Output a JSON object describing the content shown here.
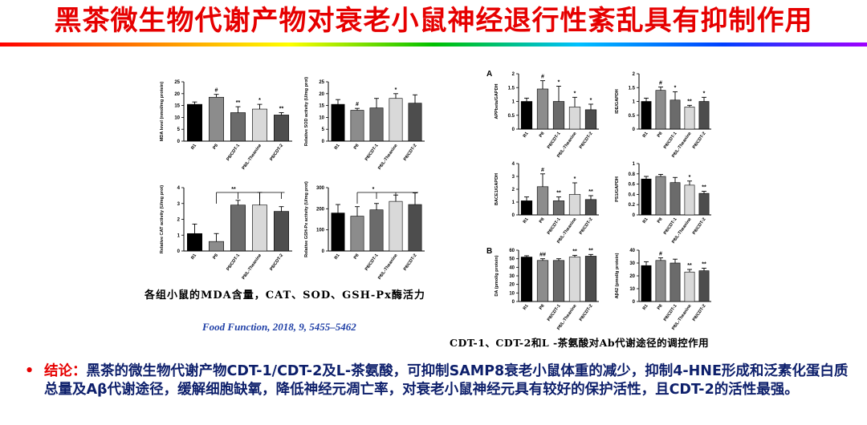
{
  "title": "黑茶微生物代谢产物对衰老小鼠神经退行性紊乱具有抑制作用",
  "colors": {
    "title": "#e60000",
    "conclusion_text": "#0d1f6b",
    "citation": "#1f3fa6",
    "bars": [
      "#000000",
      "#8c8c8c",
      "#6b6b6b",
      "#d9d9d9",
      "#4d4d4d"
    ]
  },
  "left_caption": "各组小鼠的MDA含量，CAT、SOD、GSH-Px酶活力",
  "citation": "Food Function, 2018, 9, 5455–5462",
  "right_caption": "CDT-1、CDT-2和L -茶氨酸对Ab代谢途径的调控作用",
  "conclusion": {
    "bullet": "•",
    "label": "结论：",
    "text": "黑茶的微生物代谢产物CDT-1/CDT-2及L-茶氨酸，可抑制SAMP8衰老小鼠体重的减少，抑制4-HNE形成和泛素化蛋白质总量及Aβ代谢途径，缓解细胞缺氧，降低神经元凋亡率，对衰老小鼠神经元具有较好的保护活性，且CDT-2的活性最强。"
  },
  "panel_letters": [
    "A",
    "B"
  ],
  "chart_data": [
    {
      "id": "mda",
      "type": "bar",
      "ylabel": "MDA level (nmol/mg protein)",
      "ylim": [
        0,
        25
      ],
      "yticks": [
        0,
        5,
        10,
        15,
        20,
        25
      ],
      "categories": [
        "R1",
        "P8",
        "P8/CDT-1",
        "P8/L-Theanine",
        "P8/CDT-2"
      ],
      "values": [
        15.5,
        18.5,
        12,
        13.5,
        11
      ],
      "errors": [
        1,
        1.2,
        2.5,
        2,
        1
      ],
      "sig": [
        "",
        "#",
        "**",
        "*",
        "**"
      ]
    },
    {
      "id": "sod",
      "type": "bar",
      "ylabel": "Relative SOD activity (U/mg prot)",
      "ylim": [
        0,
        25
      ],
      "yticks": [
        0,
        5,
        10,
        15,
        20,
        25
      ],
      "categories": [
        "R1",
        "P8",
        "P8/CDT-1",
        "P8/L-Theanine",
        "P8/CDT-2"
      ],
      "values": [
        15.5,
        13,
        14,
        18,
        16
      ],
      "errors": [
        2,
        0.8,
        4,
        2,
        3.5
      ],
      "sig": [
        "",
        "#",
        "",
        "*",
        ""
      ]
    },
    {
      "id": "cat",
      "type": "bar",
      "ylabel": "Relative CAT activity (U/mg prot)",
      "ylim": [
        0,
        4
      ],
      "yticks": [
        0,
        1,
        2,
        3,
        4
      ],
      "categories": [
        "R1",
        "P8",
        "P8/CDT-1",
        "P8/L-Theanine",
        "P8/CDT-2"
      ],
      "values": [
        1.1,
        0.6,
        2.9,
        2.9,
        2.5
      ],
      "errors": [
        0.6,
        0.5,
        0.3,
        0.8,
        0.3
      ],
      "sig": [
        "",
        "",
        "",
        "",
        ""
      ],
      "bracket": "**"
    },
    {
      "id": "gsh",
      "type": "bar",
      "ylabel": "Relative GSH-Px activity (U/mg prot)",
      "ylim": [
        0,
        300
      ],
      "yticks": [
        0,
        100,
        200,
        300
      ],
      "categories": [
        "R1",
        "P8",
        "P8/CDT-1",
        "P8/L-Theanine",
        "P8/CDT-2"
      ],
      "values": [
        180,
        165,
        195,
        235,
        220
      ],
      "errors": [
        40,
        45,
        30,
        30,
        55
      ],
      "sig": [
        "",
        "",
        "",
        "",
        ""
      ],
      "bracket": "*"
    },
    {
      "id": "app",
      "type": "bar",
      "ylabel": "APPbeta/GAPDH",
      "ylim": [
        0,
        2
      ],
      "yticks": [
        0.0,
        0.5,
        1.0,
        1.5,
        2.0
      ],
      "categories": [
        "R1",
        "P8",
        "P8/CDT-1",
        "P8/L-Theanine",
        "P8/CDT-2"
      ],
      "values": [
        1.0,
        1.45,
        1.0,
        0.8,
        0.7
      ],
      "errors": [
        0.12,
        0.3,
        0.55,
        0.35,
        0.2
      ],
      "sig": [
        "",
        "#",
        "*",
        "*",
        "*"
      ]
    },
    {
      "id": "ide",
      "type": "bar",
      "ylabel": "IDE/GAPDH",
      "ylim": [
        0,
        2
      ],
      "yticks": [
        0.0,
        0.5,
        1.0,
        1.5,
        2.0
      ],
      "categories": [
        "R1",
        "P8",
        "P8/CDT-1",
        "P8/L-Theanine",
        "P8/CDT-2"
      ],
      "values": [
        1.0,
        1.4,
        1.05,
        0.8,
        1.0
      ],
      "errors": [
        0.12,
        0.12,
        0.3,
        0.06,
        0.15
      ],
      "sig": [
        "",
        "#",
        "*",
        "**",
        "*"
      ]
    },
    {
      "id": "bace",
      "type": "bar",
      "ylabel": "BACE1/GAPDH",
      "ylim": [
        0,
        4
      ],
      "yticks": [
        0,
        1,
        2,
        3,
        4
      ],
      "categories": [
        "R1",
        "P8",
        "P8/CDT-1",
        "P8/L-Theanine",
        "P8/CDT-2"
      ],
      "values": [
        1.1,
        2.2,
        1.1,
        1.6,
        1.2
      ],
      "errors": [
        0.3,
        1.0,
        0.3,
        0.9,
        0.3
      ],
      "sig": [
        "",
        "#",
        "**",
        "*",
        "**"
      ]
    },
    {
      "id": "ps1",
      "type": "bar",
      "ylabel": "PS1/GAPDH",
      "ylim": [
        0,
        1.0
      ],
      "yticks": [
        0.0,
        0.2,
        0.4,
        0.6,
        0.8,
        1.0
      ],
      "categories": [
        "R1",
        "P8",
        "P8/CDT-1",
        "P8/L-Theanine",
        "P8/CDT-2"
      ],
      "values": [
        0.7,
        0.75,
        0.63,
        0.58,
        0.42
      ],
      "errors": [
        0.05,
        0.04,
        0.1,
        0.08,
        0.04
      ],
      "sig": [
        "",
        "",
        "",
        "*",
        "**"
      ]
    },
    {
      "id": "da",
      "type": "bar",
      "ylabel": "DA (pmol/g protein)",
      "ylim": [
        0,
        60
      ],
      "yticks": [
        0,
        10,
        20,
        30,
        40,
        50,
        60
      ],
      "categories": [
        "R1",
        "P8",
        "P8/CDT-1",
        "P8/L-Theanine",
        "P8/CDT-2"
      ],
      "values": [
        52,
        48,
        48,
        52,
        53
      ],
      "errors": [
        1.5,
        2,
        2,
        2,
        2
      ],
      "sig": [
        "",
        "##",
        "",
        "**",
        "**"
      ]
    },
    {
      "id": "ab42",
      "type": "bar",
      "ylabel": "Aβ42 (pmol/g protein)",
      "ylim": [
        0,
        40
      ],
      "yticks": [
        0,
        10,
        20,
        30,
        40
      ],
      "categories": [
        "R1",
        "P8",
        "P8/CDT-1",
        "P8/L-Theanine",
        "P8/CDT-2"
      ],
      "values": [
        28,
        32,
        30,
        23,
        24
      ],
      "errors": [
        3,
        2,
        3,
        2,
        2
      ],
      "sig": [
        "",
        "#",
        "",
        "**",
        "**"
      ]
    }
  ]
}
